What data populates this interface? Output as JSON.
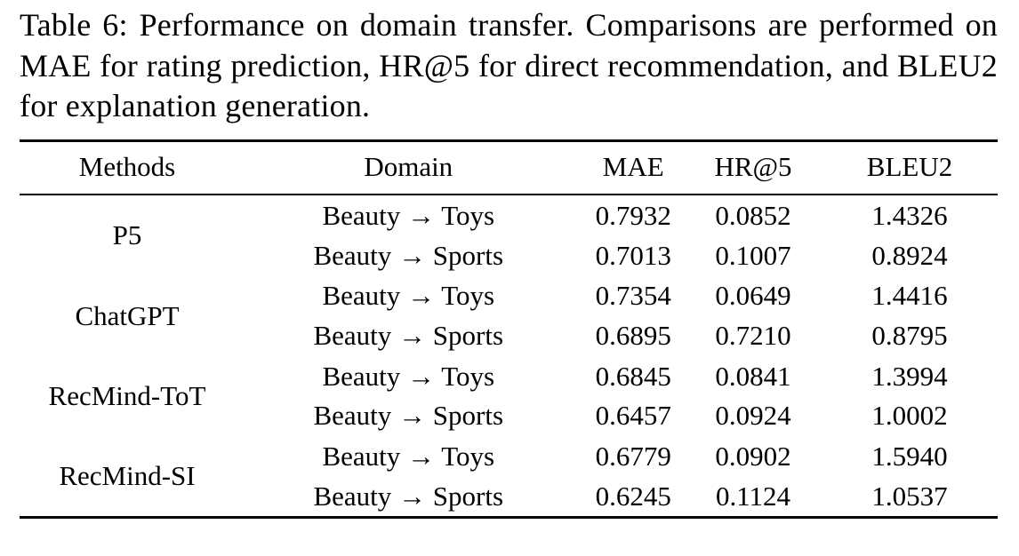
{
  "caption": "Table 6: Performance on domain transfer. Comparisons are performed on MAE for rating prediction, HR@5 for direct recommendation, and BLEU2 for explanation generation.",
  "table": {
    "headers": [
      "Methods",
      "Domain",
      "MAE",
      "HR@5",
      "BLEU2"
    ],
    "groups": [
      {
        "method": "P5",
        "rows": [
          {
            "domain": "Beauty → Toys",
            "mae": "0.7932",
            "hr5": "0.0852",
            "bleu2": "1.4326"
          },
          {
            "domain": "Beauty → Sports",
            "mae": "0.7013",
            "hr5": "0.1007",
            "bleu2": "0.8924"
          }
        ]
      },
      {
        "method": "ChatGPT",
        "rows": [
          {
            "domain": "Beauty → Toys",
            "mae": "0.7354",
            "hr5": "0.0649",
            "bleu2": "1.4416"
          },
          {
            "domain": "Beauty → Sports",
            "mae": "0.6895",
            "hr5": "0.7210",
            "bleu2": "0.8795"
          }
        ]
      },
      {
        "method": "RecMind-ToT",
        "rows": [
          {
            "domain": "Beauty → Toys",
            "mae": "0.6845",
            "hr5": "0.0841",
            "bleu2": "1.3994"
          },
          {
            "domain": "Beauty → Sports",
            "mae": "0.6457",
            "hr5": "0.0924",
            "bleu2": "1.0002"
          }
        ]
      },
      {
        "method": "RecMind-SI",
        "rows": [
          {
            "domain": "Beauty → Toys",
            "mae": "0.6779",
            "hr5": "0.0902",
            "bleu2": "1.5940"
          },
          {
            "domain": "Beauty → Sports",
            "mae": "0.6245",
            "hr5": "0.1124",
            "bleu2": "1.0537"
          }
        ]
      }
    ]
  }
}
